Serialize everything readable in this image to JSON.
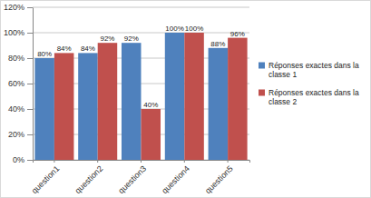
{
  "chart_data": {
    "type": "bar",
    "categories": [
      "question1",
      "question2",
      "question3",
      "question4",
      "question5"
    ],
    "series": [
      {
        "name": "Réponses exactes dans la classe 1",
        "color": "#4f81bd",
        "values": [
          80,
          84,
          92,
          100,
          88
        ],
        "value_labels": [
          "80%",
          "84%",
          "92%",
          "100%",
          "88%"
        ]
      },
      {
        "name": "Réponses exactes dans la classe 2",
        "color": "#c0504d",
        "values": [
          84,
          92,
          40,
          100,
          96
        ],
        "value_labels": [
          "84%",
          "92%",
          "40%",
          "100%",
          "96%"
        ]
      }
    ],
    "ylim": [
      0,
      120
    ],
    "yticks": [
      {
        "value": 0,
        "label": "0%"
      },
      {
        "value": 20,
        "label": "20%"
      },
      {
        "value": 40,
        "label": "40%"
      },
      {
        "value": 60,
        "label": "60%"
      },
      {
        "value": 80,
        "label": "80%"
      },
      {
        "value": 100,
        "label": "100%"
      },
      {
        "value": 120,
        "label": "120%"
      }
    ],
    "grid": true,
    "data_labels": true,
    "legend": "right"
  }
}
